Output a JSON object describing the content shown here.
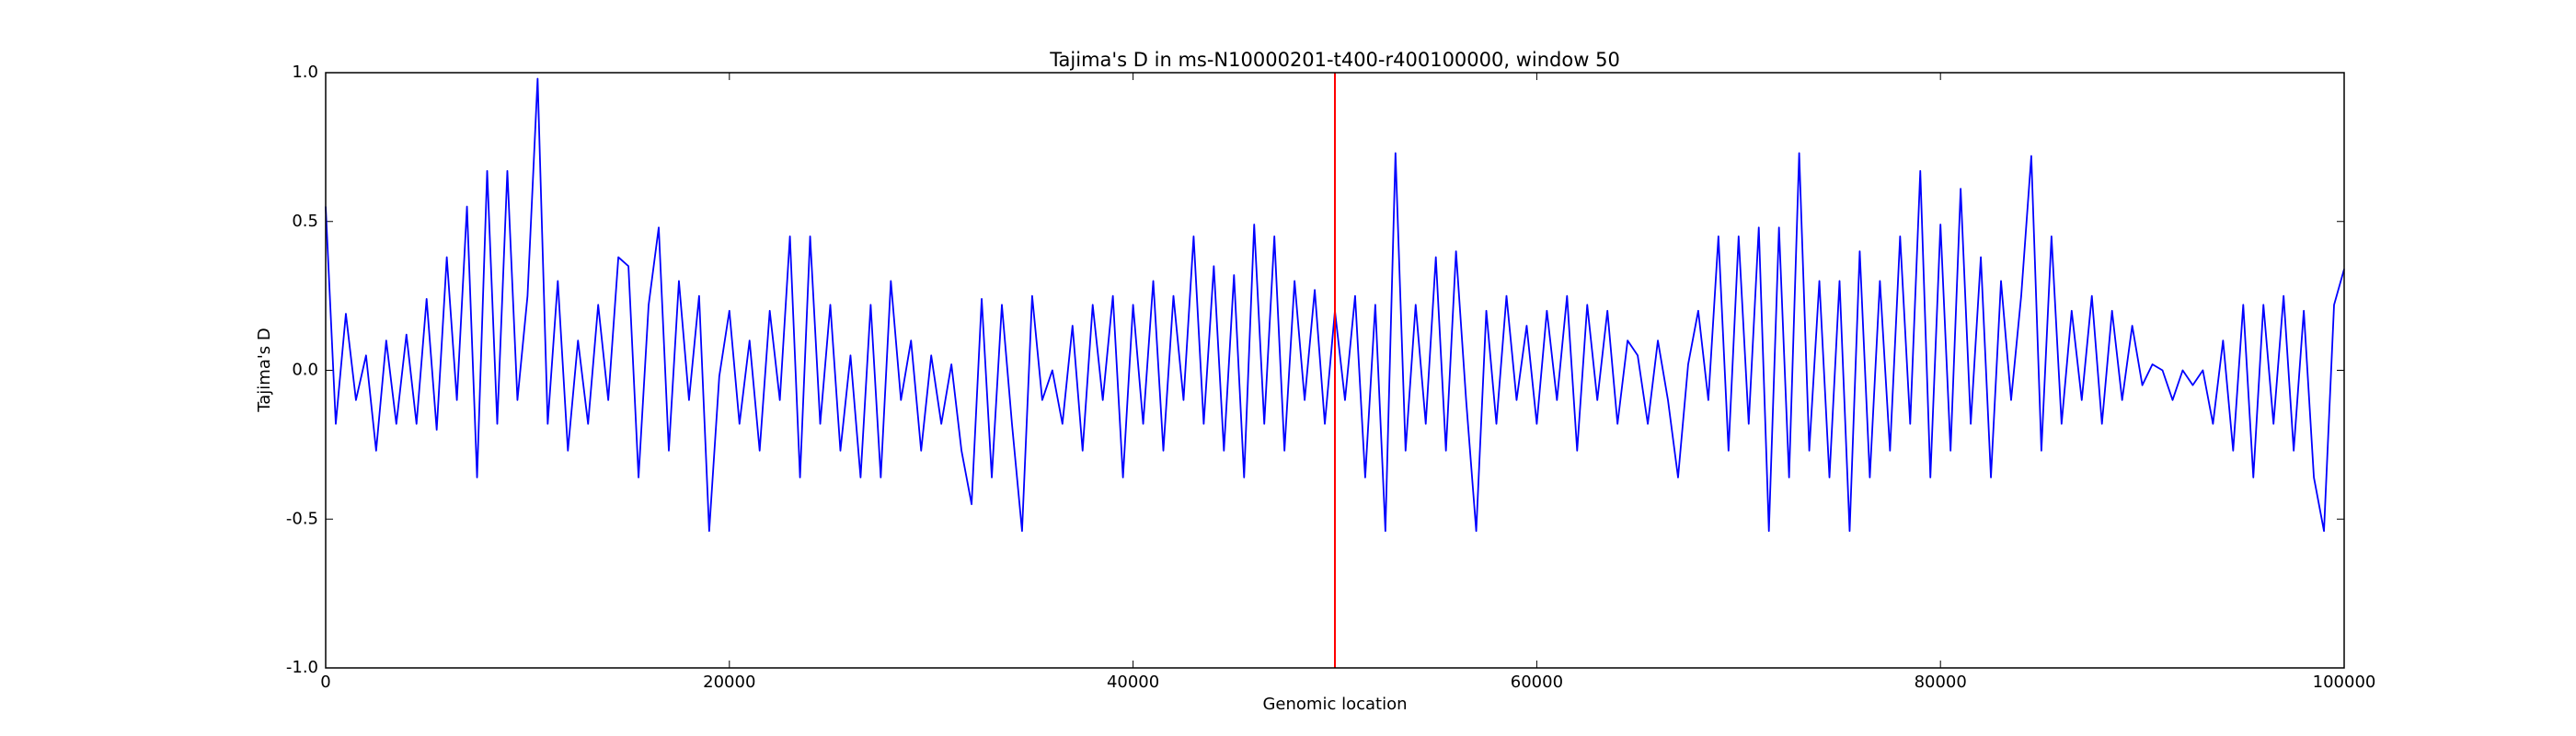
{
  "chart_data": {
    "type": "line",
    "title": "Tajima's D in ms-N10000201-t400-r400100000, window 50",
    "xlabel": "Genomic location",
    "ylabel": "Tajima's D",
    "xlim": [
      0,
      100000
    ],
    "xticks": [
      0,
      20000,
      40000,
      60000,
      80000,
      100000
    ],
    "ylim": [
      -1,
      1
    ],
    "yticks": [
      {
        "value": -1,
        "label": "-1.0"
      },
      -0.5,
      {
        "value": 0,
        "label": "0.0"
      },
      0.5,
      {
        "value": 1,
        "label": "1.0"
      }
    ],
    "grid": false,
    "vlines": [
      {
        "x": 50000,
        "color": "#ff0000"
      }
    ],
    "x": [
      0,
      500,
      1000,
      1500,
      2000,
      2500,
      3000,
      3500,
      4000,
      4500,
      5000,
      5500,
      6000,
      6500,
      7000,
      7500,
      8000,
      8500,
      9000,
      9500,
      10000,
      10500,
      11000,
      11500,
      12000,
      12500,
      13000,
      13500,
      14000,
      14500,
      15000,
      15500,
      16000,
      16500,
      17000,
      17500,
      18000,
      18500,
      19000,
      19500,
      20000,
      20500,
      21000,
      21500,
      22000,
      22500,
      23000,
      23500,
      24000,
      24500,
      25000,
      25500,
      26000,
      26500,
      27000,
      27500,
      28000,
      28500,
      29000,
      29500,
      30000,
      30500,
      31000,
      31500,
      32000,
      32500,
      33000,
      33500,
      34000,
      34500,
      35000,
      35500,
      36000,
      36500,
      37000,
      37500,
      38000,
      38500,
      39000,
      39500,
      40000,
      40500,
      41000,
      41500,
      42000,
      42500,
      43000,
      43500,
      44000,
      44500,
      45000,
      45500,
      46000,
      46500,
      47000,
      47500,
      48000,
      48500,
      49000,
      49500,
      50000,
      50500,
      51000,
      51500,
      52000,
      52500,
      53000,
      53500,
      54000,
      54500,
      55000,
      55500,
      56000,
      56500,
      57000,
      57500,
      58000,
      58500,
      59000,
      59500,
      60000,
      60500,
      61000,
      61500,
      62000,
      62500,
      63000,
      63500,
      64000,
      64500,
      65000,
      65500,
      66000,
      66500,
      67000,
      67500,
      68000,
      68500,
      69000,
      69500,
      70000,
      70500,
      71000,
      71500,
      72000,
      72500,
      73000,
      73500,
      74000,
      74500,
      75000,
      75500,
      76000,
      76500,
      77000,
      77500,
      78000,
      78500,
      79000,
      79500,
      80000,
      80500,
      81000,
      81500,
      82000,
      82500,
      83000,
      83500,
      84000,
      84500,
      85000,
      85500,
      86000,
      86500,
      87000,
      87500,
      88000,
      88500,
      89000,
      89500,
      90000,
      90500,
      91000,
      91500,
      92000,
      92500,
      93000,
      93500,
      94000,
      94500,
      95000,
      95500,
      96000,
      96500,
      97000,
      97500,
      98000,
      98500,
      99000,
      99500,
      100000
    ],
    "series": [
      {
        "color": "#0000ff",
        "values": [
          0.55,
          -0.18,
          0.19,
          -0.1,
          0.05,
          -0.27,
          0.1,
          -0.18,
          0.12,
          -0.18,
          0.24,
          -0.2,
          0.38,
          -0.1,
          0.55,
          -0.36,
          0.67,
          -0.18,
          0.67,
          -0.1,
          0.25,
          0.98,
          -0.18,
          0.3,
          -0.27,
          0.1,
          -0.18,
          0.22,
          -0.1,
          0.38,
          0.35,
          -0.36,
          0.22,
          0.48,
          -0.27,
          0.3,
          -0.1,
          0.25,
          -0.54,
          -0.02,
          0.2,
          -0.18,
          0.1,
          -0.27,
          0.2,
          -0.1,
          0.45,
          -0.36,
          0.45,
          -0.18,
          0.22,
          -0.27,
          0.05,
          -0.36,
          0.22,
          -0.36,
          0.3,
          -0.1,
          0.1,
          -0.27,
          0.05,
          -0.18,
          0.02,
          -0.27,
          -0.45,
          0.24,
          -0.36,
          0.22,
          -0.18,
          -0.54,
          0.25,
          -0.1,
          0.0,
          -0.18,
          0.15,
          -0.27,
          0.22,
          -0.1,
          0.25,
          -0.36,
          0.22,
          -0.18,
          0.3,
          -0.27,
          0.25,
          -0.1,
          0.45,
          -0.18,
          0.35,
          -0.27,
          0.32,
          -0.36,
          0.49,
          -0.18,
          0.45,
          -0.27,
          0.3,
          -0.1,
          0.27,
          -0.18,
          0.2,
          -0.1,
          0.25,
          -0.36,
          0.22,
          -0.54,
          0.73,
          -0.27,
          0.22,
          -0.18,
          0.38,
          -0.27,
          0.4,
          -0.1,
          -0.54,
          0.2,
          -0.18,
          0.25,
          -0.1,
          0.15,
          -0.18,
          0.2,
          -0.1,
          0.25,
          -0.27,
          0.22,
          -0.1,
          0.2,
          -0.18,
          0.1,
          0.05,
          -0.18,
          0.1,
          -0.1,
          -0.36,
          0.02,
          0.2,
          -0.1,
          0.45,
          -0.27,
          0.45,
          -0.18,
          0.48,
          -0.54,
          0.48,
          -0.36,
          0.73,
          -0.27,
          0.3,
          -0.36,
          0.3,
          -0.54,
          0.4,
          -0.36,
          0.3,
          -0.27,
          0.45,
          -0.18,
          0.67,
          -0.36,
          0.49,
          -0.27,
          0.61,
          -0.18,
          0.38,
          -0.36,
          0.3,
          -0.1,
          0.25,
          0.72,
          -0.27,
          0.45,
          -0.18,
          0.2,
          -0.1,
          0.25,
          -0.18,
          0.2,
          -0.1,
          0.15,
          -0.05,
          0.02,
          0.0,
          -0.1,
          0.0,
          -0.05,
          0.0,
          -0.18,
          0.1,
          -0.27,
          0.22,
          -0.36,
          0.22,
          -0.18,
          0.25,
          -0.27,
          0.2,
          -0.36,
          -0.54,
          0.22,
          0.34
        ]
      }
    ]
  }
}
